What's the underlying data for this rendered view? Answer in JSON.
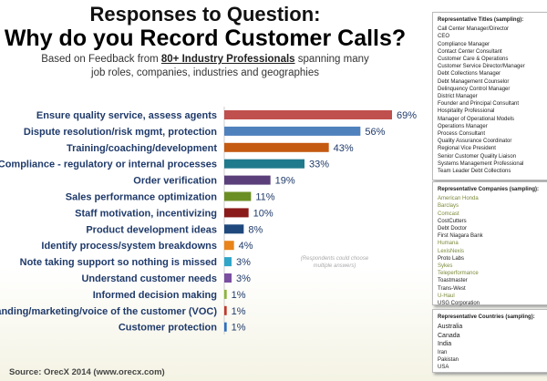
{
  "header": {
    "title1": "Responses to Question:",
    "title2": "Why do you Record Customer Calls?",
    "subtitle_pre": "Based on Feedback from ",
    "subtitle_bold": "80+ Industry Professionals",
    "subtitle_post": " spanning many job roles, companies, industries and geographies"
  },
  "chart_data": {
    "type": "bar",
    "orientation": "horizontal",
    "xlim": [
      0,
      69
    ],
    "categories": [
      "Ensure quality service, assess agents",
      "Dispute resolution/risk mgmt, protection",
      "Training/coaching/development",
      "Compliance - regulatory or internal processes",
      "Order verification",
      "Sales performance optimization",
      "Staff motivation, incentivizing",
      "Product development ideas",
      "Identify process/system breakdowns",
      "Note taking support so nothing is missed",
      "Understand customer needs",
      "Informed decision making",
      "Branding/marketing/voice of the customer (VOC)",
      "Customer protection"
    ],
    "values": [
      69,
      56,
      43,
      33,
      19,
      11,
      10,
      8,
      4,
      3,
      3,
      1,
      1,
      1
    ],
    "labels": [
      "69%",
      "56%",
      "43%",
      "33%",
      "19%",
      "11%",
      "10%",
      "8%",
      "4%",
      "3%",
      "3%",
      "1%",
      "1%",
      "1%"
    ],
    "colors": [
      "#c0504d",
      "#4f81bd",
      "#c55a11",
      "#1f7a8c",
      "#5b3f7a",
      "#6b8e23",
      "#8b1a1a",
      "#1f497d",
      "#e8841a",
      "#31a6c9",
      "#7a4fa0",
      "#8cb43c",
      "#c0392b",
      "#2e6fc0"
    ],
    "annotation": "(Respondents could choose multiple answers)"
  },
  "source": "Source: OrecX 2014 (www.orecx.com)",
  "titles_box": {
    "heading": "Representative Titles (sampling):",
    "items": [
      "Call Center Manager/Director",
      "CEO",
      "Compliance Manager",
      "Contact Center Consultant",
      "Customer Care & Operations",
      "Customer Service Director/Manager",
      "Debt Collections Manager",
      "Debt Management Counselor",
      "Delinquency Control Manager",
      "District Manager",
      "Founder and Principal Consultant",
      "Hospitality Professional",
      "Manager of Operational Models",
      "Operations Manager",
      "Process Consultant",
      "Quality Assurance Coordinator",
      "Regional Vice President",
      "Senior Customer Quality Liaison",
      "Systems Management Professional",
      "Team Leader Debt Collections"
    ]
  },
  "companies_box": {
    "heading": "Representative Companies (sampling):",
    "items": [
      {
        "name": "American Honda",
        "green": true
      },
      {
        "name": "Barclays",
        "green": true
      },
      {
        "name": "Comcast",
        "green": true
      },
      {
        "name": "CostCutters",
        "green": false
      },
      {
        "name": "Debt Doctor",
        "green": false
      },
      {
        "name": "First Niagara Bank",
        "green": false
      },
      {
        "name": "Humana",
        "green": true
      },
      {
        "name": "LexisNexis",
        "green": true
      },
      {
        "name": "Proto Labs",
        "green": false
      },
      {
        "name": "Sykes",
        "green": true
      },
      {
        "name": "Teleperformance",
        "green": true
      },
      {
        "name": "Toastmaster",
        "green": false
      },
      {
        "name": "Trans-West",
        "green": false
      },
      {
        "name": "U-Haul",
        "green": true
      },
      {
        "name": "USG Corporation",
        "green": false
      }
    ]
  },
  "countries_box": {
    "heading": "Representative Countries (sampling):",
    "items": [
      "Australia",
      "Canada",
      "India",
      "Iran",
      "Pakistan",
      "USA"
    ]
  }
}
